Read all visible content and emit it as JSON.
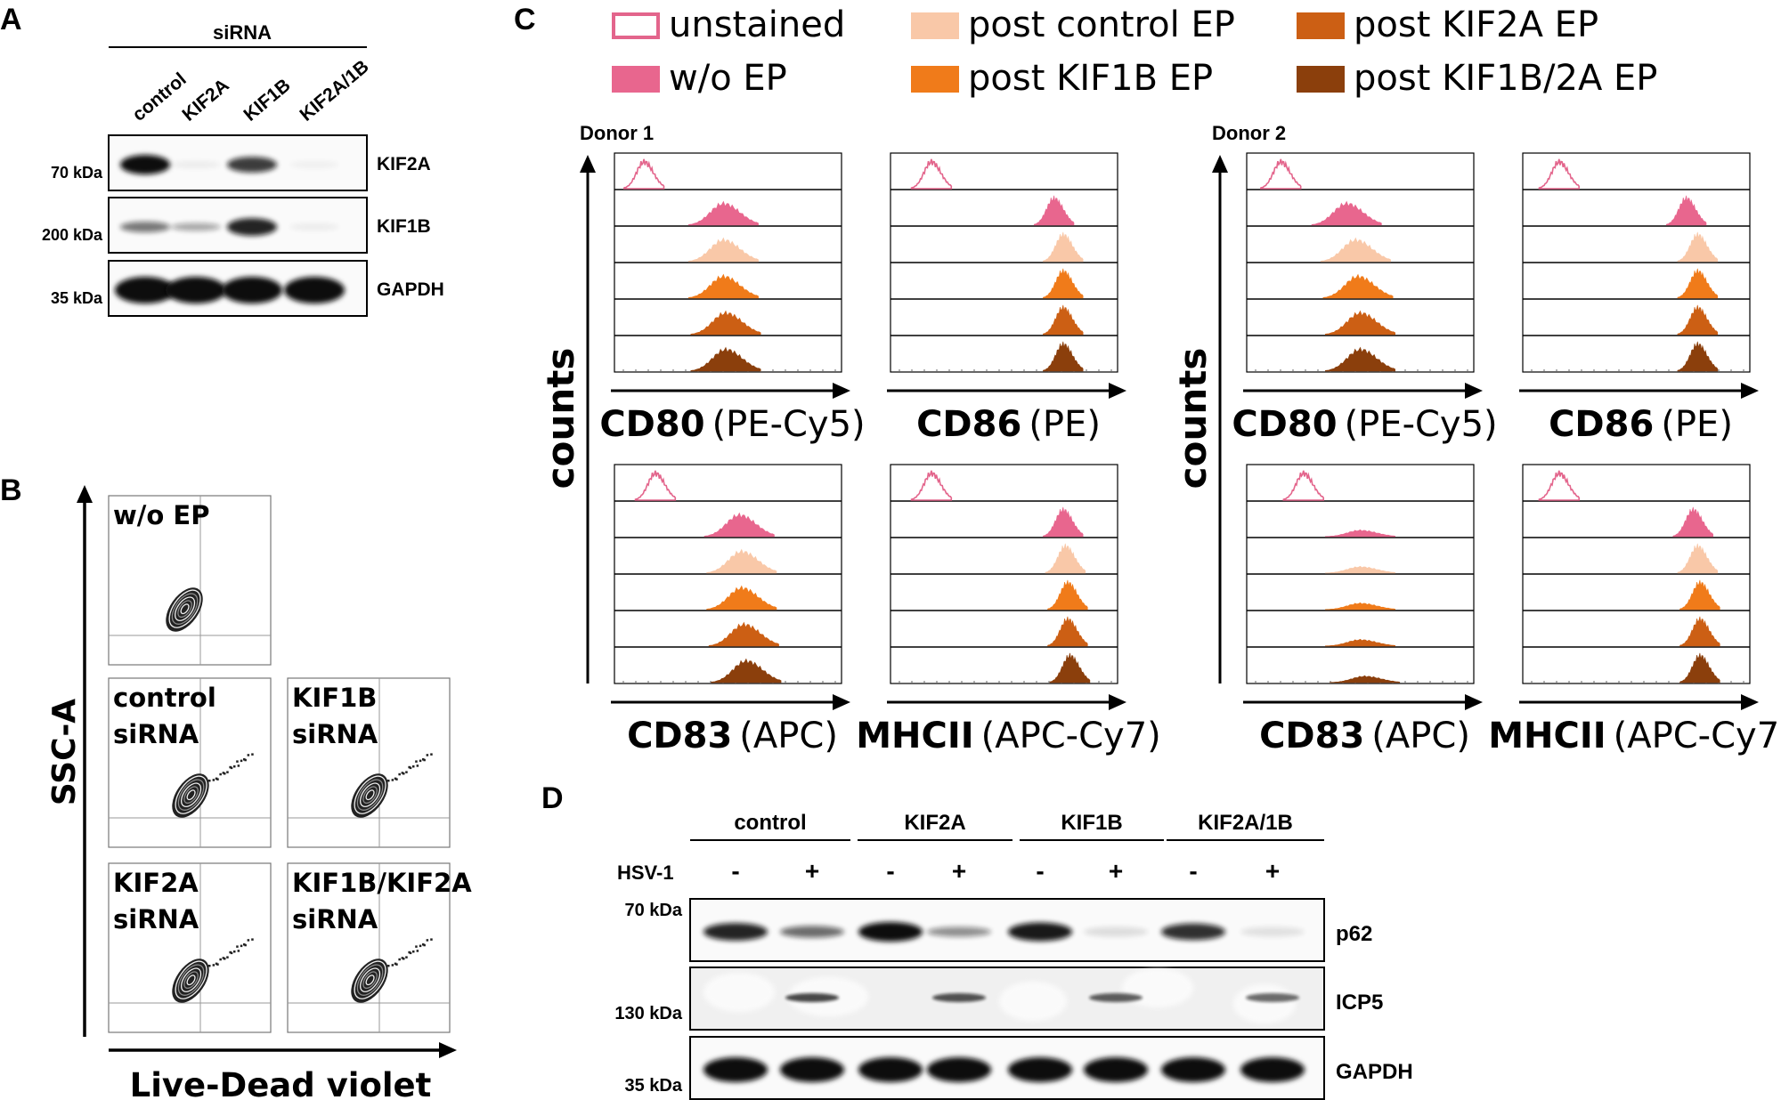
{
  "colors": {
    "unstained": "#e3658c",
    "w/o EP": "#e8668e",
    "post control EP": "#f9c8a8",
    "post KIF1B EP": "#f07b1a",
    "post KIF2A EP": "#cc5f14",
    "post KIF1B/2A EP": "#8b3f0c",
    "band": "#111111",
    "bg_blot": "#fafafa"
  },
  "panelA": {
    "letter": "A",
    "group_label": "siRNA",
    "lanes": [
      "control",
      "KIF2A",
      "KIF1B",
      "KIF2A/1B"
    ],
    "blots": [
      {
        "target": "KIF2A",
        "marker": "70 kDa",
        "intensities": [
          1.0,
          0.05,
          0.8,
          0.03
        ]
      },
      {
        "target": "KIF1B",
        "marker": "200 kDa",
        "intensities": [
          0.55,
          0.35,
          0.9,
          0.05
        ]
      },
      {
        "target": "GAPDH",
        "marker": "35 kDa",
        "intensities": [
          1.0,
          1.0,
          1.0,
          1.0
        ]
      }
    ]
  },
  "panelB": {
    "letter": "B",
    "y_axis": "SSC-A",
    "x_axis": "Live-Dead violet",
    "plots": [
      {
        "line1": "w/o EP",
        "line2": ""
      },
      {
        "line1": "control",
        "line2": "siRNA"
      },
      {
        "line1": "KIF1B",
        "line2": "siRNA"
      },
      {
        "line1": "KIF2A",
        "line2": "siRNA"
      },
      {
        "line1": "KIF1B/KIF2A",
        "line2": "siRNA"
      }
    ]
  },
  "panelC": {
    "letter": "C",
    "legend": [
      {
        "label": "unstained",
        "hollow": true
      },
      {
        "label": "post control EP",
        "hollow": false
      },
      {
        "label": "post KIF2A EP",
        "hollow": false
      },
      {
        "label": "w/o EP",
        "hollow": false
      },
      {
        "label": "post KIF1B EP",
        "hollow": false
      },
      {
        "label": "post KIF1B/2A EP",
        "hollow": false
      }
    ],
    "y_axis": "counts",
    "donors": [
      "Donor 1",
      "Donor 2"
    ],
    "markers": [
      {
        "bold": "CD80",
        "rest": "(PE-Cy5)"
      },
      {
        "bold": "CD86",
        "rest": "(PE)"
      },
      {
        "bold": "CD83",
        "rest": "(APC)"
      },
      {
        "bold": "MHCII",
        "rest": "(APC-Cy7)"
      }
    ],
    "histogram_peak_position_0to1": {
      "Donor 1": {
        "CD80": [
          0.13,
          0.48,
          0.48,
          0.48,
          0.49,
          0.49
        ],
        "CD86": [
          0.18,
          0.72,
          0.76,
          0.76,
          0.76,
          0.76
        ],
        "CD83": [
          0.18,
          0.55,
          0.56,
          0.56,
          0.57,
          0.58
        ],
        "MHCII": [
          0.18,
          0.76,
          0.77,
          0.78,
          0.78,
          0.79
        ]
      },
      "Donor 2": {
        "CD80": [
          0.15,
          0.44,
          0.48,
          0.49,
          0.5,
          0.5
        ],
        "CD86": [
          0.16,
          0.72,
          0.77,
          0.77,
          0.77,
          0.77
        ],
        "CD83": [
          0.25,
          0.5,
          0.5,
          0.5,
          0.5,
          0.52
        ],
        "MHCII": [
          0.16,
          0.75,
          0.77,
          0.78,
          0.78,
          0.78
        ]
      }
    }
  },
  "panelD": {
    "letter": "D",
    "groups": [
      "control",
      "KIF2A",
      "KIF1B",
      "KIF2A/1B"
    ],
    "treatment_label": "HSV-1",
    "signs": [
      "-",
      "+",
      "-",
      "+",
      "-",
      "+",
      "-",
      "+"
    ],
    "markers": [
      "70 kDa",
      "130 kDa",
      "35 kDa"
    ],
    "blots": [
      {
        "target": "p62",
        "intensities": [
          0.9,
          0.6,
          1.0,
          0.45,
          0.95,
          0.12,
          0.85,
          0.1
        ]
      },
      {
        "target": "ICP5",
        "intensities": [
          0.0,
          0.75,
          0.0,
          0.7,
          0.0,
          0.65,
          0.0,
          0.6
        ]
      },
      {
        "target": "GAPDH",
        "intensities": [
          1.0,
          1.0,
          1.0,
          1.0,
          1.0,
          1.0,
          1.0,
          1.0
        ]
      }
    ]
  }
}
